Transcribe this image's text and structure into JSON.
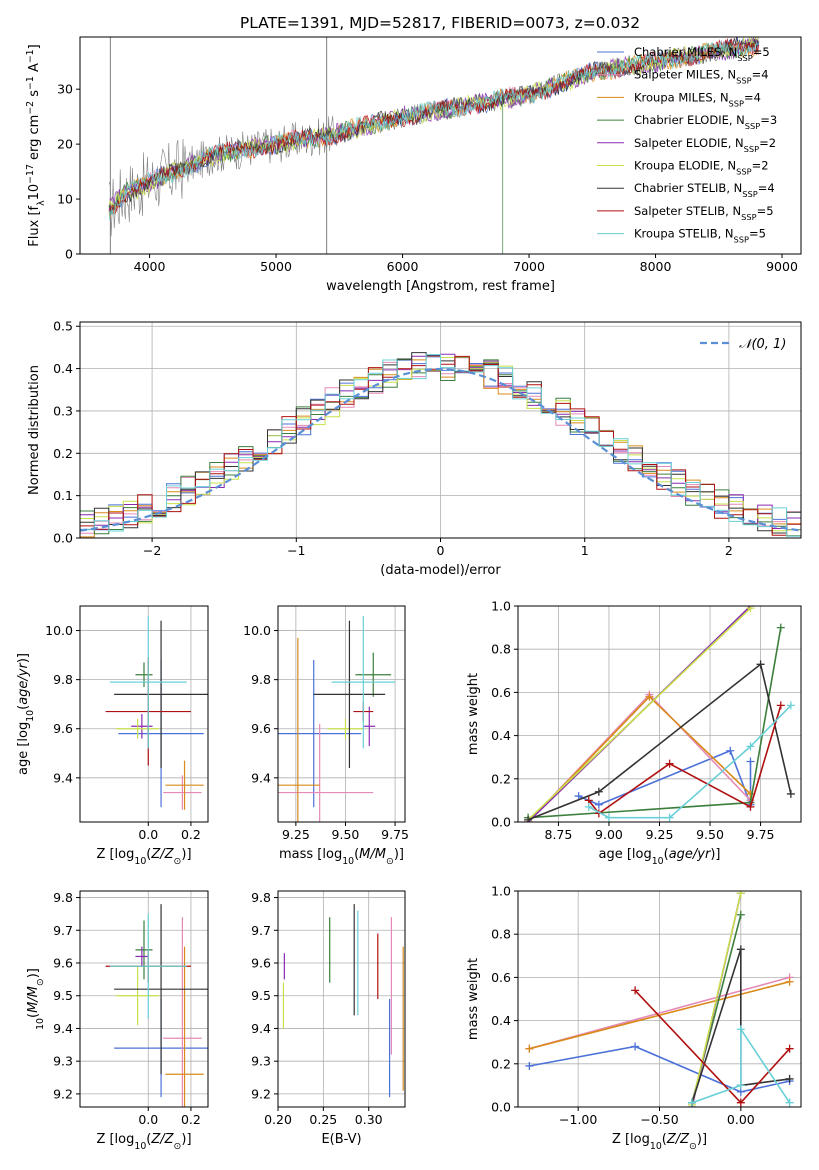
{
  "colors": {
    "Chabrier MILES": "#4c72d9",
    "Salpeter MILES": "#e58ab8",
    "Kroupa MILES": "#d98a1a",
    "Chabrier ELODIE": "#3c7f3c",
    "Salpeter ELODIE": "#8a2bb0",
    "Kroupa ELODIE": "#c8e04a",
    "Chabrier STELIB": "#333333",
    "Salpeter STELIB": "#b01010",
    "Kroupa STELIB": "#68d0d6",
    "spectrum": "#7f7f7f",
    "gaussian": "#5b8fd6",
    "grid": "#b0b0b0"
  },
  "chart_data": [
    {
      "id": "spectrum",
      "type": "line",
      "title": "PLATE=1391, MJD=52817, FIBERID=0073, z=0.032",
      "xlabel": "wavelength [Angstrom, rest frame]",
      "ylabel": "Flux [f",
      "xlim": [
        3450,
        9150
      ],
      "ylim": [
        0,
        39.5
      ],
      "xticks": [
        4000,
        5000,
        6000,
        7000,
        8000,
        9000
      ],
      "yticks": [
        0,
        10,
        20,
        30
      ],
      "grid": false,
      "legend_position": "right",
      "legend": [
        {
          "model": "Chabrier MILES",
          "n": "5"
        },
        {
          "model": "Salpeter MILES",
          "n": "4"
        },
        {
          "model": "Kroupa MILES",
          "n": "4"
        },
        {
          "model": "Chabrier ELODIE",
          "n": "3"
        },
        {
          "model": "Salpeter ELODIE",
          "n": "2"
        },
        {
          "model": "Kroupa ELODIE",
          "n": "2"
        },
        {
          "model": "Chabrier STELIB",
          "n": "4"
        },
        {
          "model": "Salpeter STELIB",
          "n": "5"
        },
        {
          "model": "Kroupa STELIB",
          "n": "5"
        }
      ],
      "continuum": [
        [
          3680,
          8
        ],
        [
          3800,
          11
        ],
        [
          4000,
          13
        ],
        [
          4200,
          15
        ],
        [
          4500,
          18
        ],
        [
          5000,
          20
        ],
        [
          5500,
          22
        ],
        [
          6000,
          25
        ],
        [
          6500,
          27
        ],
        [
          7000,
          29
        ],
        [
          7500,
          33
        ],
        [
          8000,
          35
        ],
        [
          8500,
          37
        ],
        [
          8800,
          38
        ]
      ],
      "spikes": [
        {
          "x": 5400,
          "y0": 0,
          "y1": 39.5
        },
        {
          "x": 3690,
          "y0": 0,
          "y1": 39.5
        }
      ],
      "model_drops": [
        {
          "model": "Salpeter STELIB",
          "x": 7420
        },
        {
          "model": "Chabrier ELODIE",
          "x": 6790
        }
      ]
    },
    {
      "id": "residuals",
      "type": "histogram",
      "xlabel": "(data-model)/error",
      "ylabel": "Normed distribution",
      "xlim": [
        -2.5,
        2.5
      ],
      "ylim": [
        0,
        0.51
      ],
      "xticks": [
        -2,
        -1,
        0,
        1,
        2
      ],
      "yticks": [
        0.0,
        0.1,
        0.2,
        0.3,
        0.4,
        0.5
      ],
      "grid": true,
      "legend_position": "top-right",
      "gaussian_label": "𝒩(0, 1)",
      "bin_width": 0.1
    },
    {
      "id": "age-vs-Z",
      "type": "errorbar",
      "xlabel": "Z [log",
      "ylabel": "age  [log",
      "xlim": [
        -0.32,
        0.28
      ],
      "ylim": [
        9.22,
        10.1
      ],
      "xticks": [
        0.0,
        0.2
      ],
      "yticks": [
        9.4,
        9.6,
        9.8,
        10.0
      ],
      "grid": true,
      "points": [
        {
          "model": "Chabrier MILES",
          "x": 0.06,
          "xerr": 0.2,
          "y": 9.58,
          "yerr": 0.3
        },
        {
          "model": "Salpeter MILES",
          "x": 0.16,
          "xerr": 0.09,
          "y": 9.34,
          "yerr": 0.07
        },
        {
          "model": "Kroupa MILES",
          "x": 0.17,
          "xerr": 0.09,
          "y": 9.37,
          "yerr": 0.1
        },
        {
          "model": "Chabrier ELODIE",
          "x": -0.02,
          "xerr": 0.04,
          "y": 9.82,
          "yerr": 0.05
        },
        {
          "model": "Salpeter ELODIE",
          "x": -0.03,
          "xerr": 0.05,
          "y": 9.61,
          "yerr": 0.05
        },
        {
          "model": "Kroupa ELODIE",
          "x": -0.05,
          "xerr": 0.1,
          "y": 9.6,
          "yerr": 0.04
        },
        {
          "model": "Chabrier STELIB",
          "x": 0.06,
          "xerr": 0.22,
          "y": 9.74,
          "yerr": 0.3
        },
        {
          "model": "Salpeter STELIB",
          "x": 0.0,
          "xerr": 0.2,
          "y": 9.67,
          "yerr": 0.22
        },
        {
          "model": "Kroupa STELIB",
          "x": 0.0,
          "xerr": 0.18,
          "y": 9.79,
          "yerr": 0.27
        }
      ]
    },
    {
      "id": "age-vs-mass",
      "type": "errorbar",
      "xlabel": "mass [log",
      "ylabel": "",
      "xlim": [
        9.16,
        9.8
      ],
      "ylim": [
        9.22,
        10.1
      ],
      "xticks": [
        9.25,
        9.5,
        9.75
      ],
      "yticks": [
        9.4,
        9.6,
        9.8,
        10.0
      ],
      "grid": true,
      "points": [
        {
          "model": "Chabrier MILES",
          "x": 9.34,
          "xerr": 0.24,
          "y": 9.58,
          "yerr": 0.3
        },
        {
          "model": "Salpeter MILES",
          "x": 9.37,
          "xerr": 0.27,
          "y": 9.34,
          "yerr": 0.28
        },
        {
          "model": "Kroupa MILES",
          "x": 9.26,
          "xerr": 0.11,
          "y": 9.37,
          "yerr": 0.6
        },
        {
          "model": "Chabrier ELODIE",
          "x": 9.64,
          "xerr": 0.09,
          "y": 9.82,
          "yerr": 0.09
        },
        {
          "model": "Salpeter ELODIE",
          "x": 9.62,
          "xerr": 0.03,
          "y": 9.61,
          "yerr": 0.08
        },
        {
          "model": "Kroupa ELODIE",
          "x": 9.5,
          "xerr": 0.09,
          "y": 9.6,
          "yerr": 0.04
        },
        {
          "model": "Chabrier STELIB",
          "x": 9.52,
          "xerr": 0.18,
          "y": 9.74,
          "yerr": 0.3
        },
        {
          "model": "Salpeter STELIB",
          "x": 9.59,
          "xerr": 0.05,
          "y": 9.67,
          "yerr": 0.04
        },
        {
          "model": "Kroupa STELIB",
          "x": 9.59,
          "xerr": 0.16,
          "y": 9.79,
          "yerr": 0.27
        }
      ]
    },
    {
      "id": "massweight-vs-age",
      "type": "line",
      "xlabel": "age  [log",
      "ylabel": "mass weight",
      "xlim": [
        8.55,
        9.95
      ],
      "ylim": [
        0,
        1
      ],
      "xticks": [
        8.75,
        9.0,
        9.25,
        9.5,
        9.75
      ],
      "yticks": [
        0.0,
        0.2,
        0.4,
        0.6,
        0.8,
        1.0
      ],
      "grid": true,
      "series": [
        {
          "model": "Chabrier MILES",
          "points": [
            [
              8.85,
              0.12
            ],
            [
              8.95,
              0.08
            ],
            [
              9.6,
              0.33
            ],
            [
              9.7,
              0.08
            ],
            [
              9.7,
              0.28
            ]
          ]
        },
        {
          "model": "Salpeter MILES",
          "points": [
            [
              8.6,
              0.0
            ],
            [
              9.2,
              0.59
            ],
            [
              9.7,
              0.1
            ]
          ]
        },
        {
          "model": "Kroupa MILES",
          "points": [
            [
              8.6,
              0.0
            ],
            [
              9.2,
              0.58
            ],
            [
              9.7,
              0.13
            ]
          ]
        },
        {
          "model": "Chabrier ELODIE",
          "points": [
            [
              8.6,
              0.02
            ],
            [
              9.7,
              0.09
            ],
            [
              9.85,
              0.9
            ]
          ]
        },
        {
          "model": "Salpeter ELODIE",
          "points": [
            [
              8.6,
              0.0
            ],
            [
              9.7,
              1.0
            ]
          ]
        },
        {
          "model": "Kroupa ELODIE",
          "points": [
            [
              8.6,
              0.01
            ],
            [
              9.7,
              0.99
            ]
          ]
        },
        {
          "model": "Chabrier STELIB",
          "points": [
            [
              8.6,
              0.01
            ],
            [
              8.95,
              0.14
            ],
            [
              9.75,
              0.73
            ],
            [
              9.9,
              0.13
            ]
          ]
        },
        {
          "model": "Salpeter STELIB",
          "points": [
            [
              8.9,
              0.1
            ],
            [
              8.95,
              0.04
            ],
            [
              9.3,
              0.27
            ],
            [
              9.7,
              0.07
            ],
            [
              9.85,
              0.54
            ]
          ]
        },
        {
          "model": "Kroupa STELIB",
          "points": [
            [
              8.9,
              0.07
            ],
            [
              9.0,
              0.02
            ],
            [
              9.3,
              0.02
            ],
            [
              9.7,
              0.35
            ],
            [
              9.9,
              0.54
            ]
          ]
        }
      ]
    },
    {
      "id": "mass-vs-Z",
      "type": "errorbar",
      "xlabel": "Z [log",
      "ylabel": "mass [log",
      "xlim": [
        -0.32,
        0.28
      ],
      "ylim": [
        9.16,
        9.82
      ],
      "xticks": [
        0.0,
        0.2
      ],
      "yticks": [
        9.2,
        9.3,
        9.4,
        9.5,
        9.6,
        9.7,
        9.8
      ],
      "grid": true,
      "points": [
        {
          "model": "Chabrier MILES",
          "x": 0.06,
          "xerr": 0.22,
          "y": 9.34,
          "yerr": 0.15
        },
        {
          "model": "Salpeter MILES",
          "x": 0.16,
          "xerr": 0.09,
          "y": 9.37,
          "yerr": 0.37
        },
        {
          "model": "Kroupa MILES",
          "x": 0.17,
          "xerr": 0.09,
          "y": 9.26,
          "yerr": 0.39
        },
        {
          "model": "Chabrier ELODIE",
          "x": -0.02,
          "xerr": 0.04,
          "y": 9.64,
          "yerr": 0.09
        },
        {
          "model": "Salpeter ELODIE",
          "x": -0.03,
          "xerr": 0.03,
          "y": 9.62,
          "yerr": 0.03
        },
        {
          "model": "Kroupa ELODIE",
          "x": -0.05,
          "xerr": 0.1,
          "y": 9.5,
          "yerr": 0.09
        },
        {
          "model": "Chabrier STELIB",
          "x": 0.06,
          "xerr": 0.22,
          "y": 9.52,
          "yerr": 0.26
        },
        {
          "model": "Salpeter STELIB",
          "x": 0.0,
          "xerr": 0.2,
          "y": 9.59,
          "yerr": 0.05
        },
        {
          "model": "Kroupa STELIB",
          "x": 0.0,
          "xerr": 0.18,
          "y": 9.59,
          "yerr": 0.16
        }
      ]
    },
    {
      "id": "mass-vs-EBV",
      "type": "errorbar",
      "xlabel": "E(B-V)",
      "ylabel": "",
      "xlim": [
        0.2,
        0.34
      ],
      "ylim": [
        9.16,
        9.82
      ],
      "xticks": [
        0.2,
        0.25,
        0.3
      ],
      "yticks": [
        9.2,
        9.3,
        9.4,
        9.5,
        9.6,
        9.7,
        9.8
      ],
      "grid": true,
      "points": [
        {
          "model": "Chabrier MILES",
          "x": 0.323,
          "xerr": 0,
          "y": 9.34,
          "yerr": 0.15
        },
        {
          "model": "Salpeter MILES",
          "x": 0.325,
          "xerr": 0,
          "y": 9.53,
          "yerr": 0.21
        },
        {
          "model": "Kroupa MILES",
          "x": 0.338,
          "xerr": 0,
          "y": 9.43,
          "yerr": 0.22
        },
        {
          "model": "Chabrier ELODIE",
          "x": 0.257,
          "xerr": 0,
          "y": 9.64,
          "yerr": 0.1
        },
        {
          "model": "Salpeter ELODIE",
          "x": 0.207,
          "xerr": 0,
          "y": 9.59,
          "yerr": 0.04
        },
        {
          "model": "Kroupa ELODIE",
          "x": 0.206,
          "xerr": 0,
          "y": 9.47,
          "yerr": 0.07
        },
        {
          "model": "Chabrier STELIB",
          "x": 0.284,
          "xerr": 0,
          "y": 9.61,
          "yerr": 0.17
        },
        {
          "model": "Salpeter STELIB",
          "x": 0.31,
          "xerr": 0,
          "y": 9.59,
          "yerr": 0.1
        },
        {
          "model": "Kroupa STELIB",
          "x": 0.288,
          "xerr": 0,
          "y": 9.6,
          "yerr": 0.16
        }
      ]
    },
    {
      "id": "massweight-vs-Z",
      "type": "line",
      "xlabel": "Z [log",
      "ylabel": "mass weight",
      "xlim": [
        -1.37,
        0.37
      ],
      "ylim": [
        0,
        1
      ],
      "xticks": [
        -1.0,
        -0.5,
        0.0
      ],
      "yticks": [
        0.0,
        0.2,
        0.4,
        0.6,
        0.8,
        1.0
      ],
      "grid": true,
      "series": [
        {
          "model": "Chabrier MILES",
          "points": [
            [
              -1.3,
              0.19
            ],
            [
              -0.65,
              0.28
            ],
            [
              0.0,
              0.07
            ],
            [
              0.3,
              0.12
            ]
          ]
        },
        {
          "model": "Salpeter MILES",
          "points": [
            [
              -1.3,
              0.27
            ],
            [
              0.3,
              0.6
            ]
          ]
        },
        {
          "model": "Kroupa MILES",
          "points": [
            [
              -1.3,
              0.27
            ],
            [
              0.3,
              0.58
            ]
          ]
        },
        {
          "model": "Chabrier ELODIE",
          "points": [
            [
              -0.3,
              0.02
            ],
            [
              0.0,
              0.89
            ]
          ]
        },
        {
          "model": "Salpeter ELODIE",
          "points": [
            [
              -0.3,
              0.0
            ],
            [
              0.0,
              0.99
            ]
          ]
        },
        {
          "model": "Kroupa ELODIE",
          "points": [
            [
              -0.3,
              0.01
            ],
            [
              0.0,
              0.99
            ]
          ]
        },
        {
          "model": "Chabrier STELIB",
          "points": [
            [
              -0.3,
              0.02
            ],
            [
              0.0,
              0.73
            ],
            [
              0.0,
              0.1
            ],
            [
              0.3,
              0.13
            ]
          ]
        },
        {
          "model": "Salpeter STELIB",
          "points": [
            [
              -0.65,
              0.54
            ],
            [
              0.0,
              0.02
            ],
            [
              0.3,
              0.27
            ]
          ]
        },
        {
          "model": "Kroupa STELIB",
          "points": [
            [
              -0.3,
              0.02
            ],
            [
              0.0,
              0.1
            ],
            [
              0.0,
              0.36
            ],
            [
              0.3,
              0.02
            ]
          ]
        }
      ]
    }
  ]
}
